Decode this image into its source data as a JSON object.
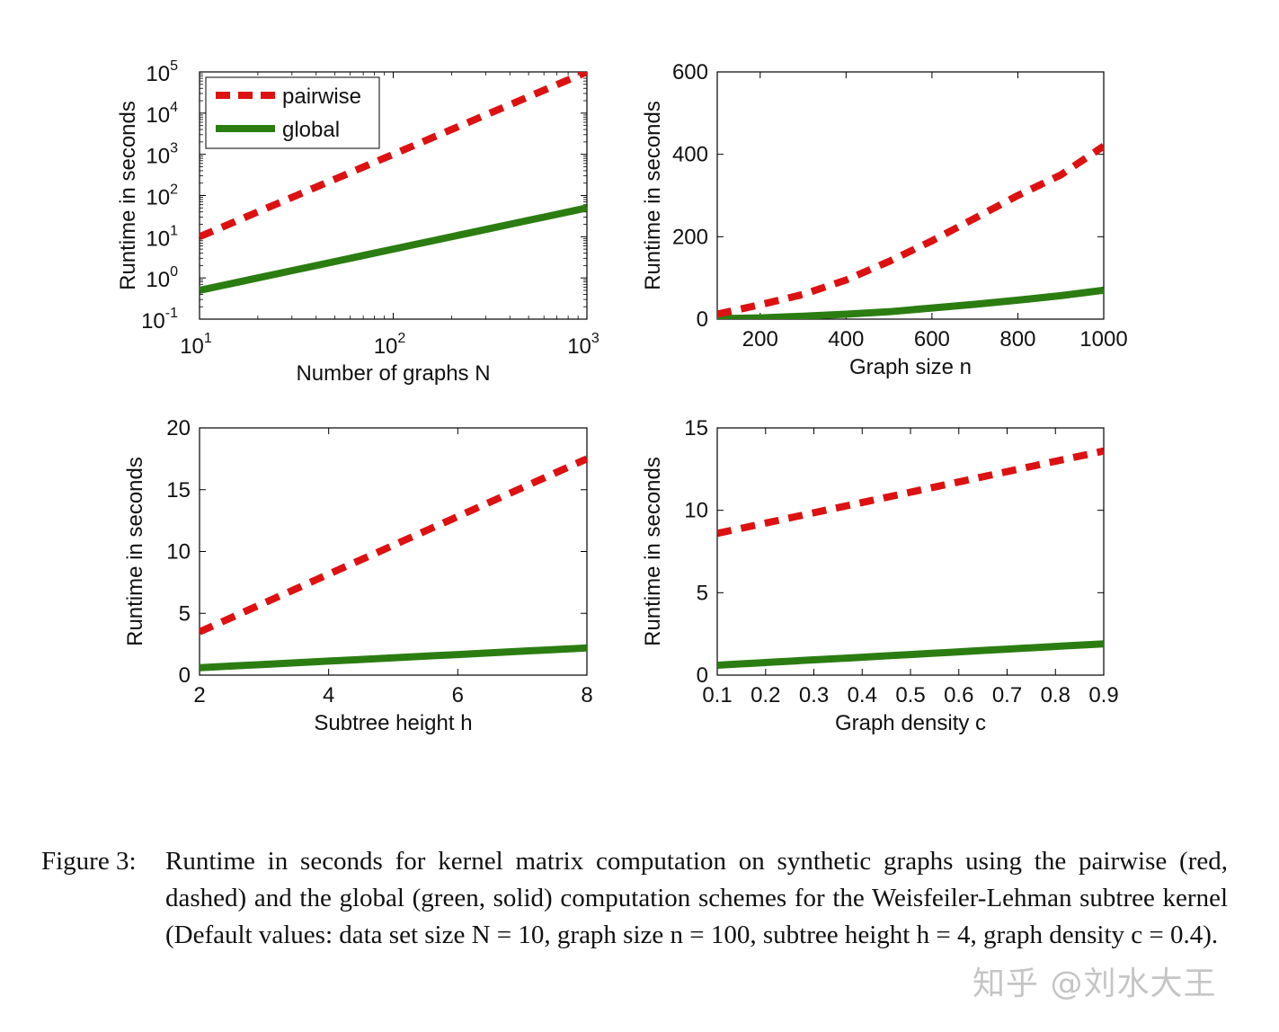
{
  "legend": {
    "pairwise": "pairwise",
    "global": "global",
    "placement": "top-left of first panel"
  },
  "colors": {
    "pairwise": "#dd1111",
    "global": "#2b7d12"
  },
  "chart_data": [
    {
      "type": "line",
      "xlabel": "Number of graphs N",
      "ylabel": "Runtime in seconds",
      "xscale": "log",
      "yscale": "log",
      "xlim": [
        10,
        1000
      ],
      "ylim": [
        0.1,
        100000
      ],
      "xticks": [
        10,
        100,
        1000
      ],
      "yticks": [
        0.1,
        1,
        10,
        100,
        1000,
        10000,
        100000
      ],
      "series": [
        {
          "name": "pairwise",
          "style": "dashed",
          "x": [
            10,
            1000
          ],
          "y": [
            10,
            100000
          ]
        },
        {
          "name": "global",
          "style": "solid",
          "x": [
            10,
            1000
          ],
          "y": [
            0.5,
            50
          ]
        }
      ]
    },
    {
      "type": "line",
      "xlabel": "Graph size n",
      "ylabel": "Runtime in seconds",
      "xlim": [
        100,
        1000
      ],
      "ylim": [
        0,
        600
      ],
      "xticks": [
        200,
        400,
        600,
        800,
        1000
      ],
      "yticks": [
        0,
        200,
        400,
        600
      ],
      "series": [
        {
          "name": "pairwise",
          "style": "dashed",
          "x": [
            100,
            200,
            300,
            400,
            500,
            600,
            700,
            800,
            900,
            1000
          ],
          "y": [
            12,
            35,
            60,
            95,
            140,
            190,
            245,
            300,
            350,
            420
          ]
        },
        {
          "name": "global",
          "style": "solid",
          "x": [
            100,
            200,
            300,
            400,
            500,
            600,
            700,
            800,
            900,
            1000
          ],
          "y": [
            1,
            3,
            7,
            12,
            18,
            27,
            36,
            46,
            57,
            70
          ]
        }
      ]
    },
    {
      "type": "line",
      "xlabel": "Subtree height h",
      "ylabel": "Runtime in seconds",
      "xlim": [
        2,
        8
      ],
      "ylim": [
        0,
        20
      ],
      "xticks": [
        2,
        4,
        6,
        8
      ],
      "yticks": [
        0,
        5,
        10,
        15,
        20
      ],
      "series": [
        {
          "name": "pairwise",
          "style": "dashed",
          "x": [
            2,
            8
          ],
          "y": [
            3.5,
            17.5
          ]
        },
        {
          "name": "global",
          "style": "solid",
          "x": [
            2,
            8
          ],
          "y": [
            0.6,
            2.2
          ]
        }
      ]
    },
    {
      "type": "line",
      "xlabel": "Graph density c",
      "ylabel": "Runtime in seconds",
      "xlim": [
        0.1,
        0.9
      ],
      "ylim": [
        0,
        15
      ],
      "xticks": [
        0.1,
        0.2,
        0.3,
        0.4,
        0.5,
        0.6,
        0.7,
        0.8,
        0.9
      ],
      "yticks": [
        0,
        5,
        10,
        15
      ],
      "series": [
        {
          "name": "pairwise",
          "style": "dashed",
          "x": [
            0.1,
            0.9
          ],
          "y": [
            8.6,
            13.6
          ]
        },
        {
          "name": "global",
          "style": "solid",
          "x": [
            0.1,
            0.9
          ],
          "y": [
            0.6,
            1.9
          ]
        }
      ]
    }
  ],
  "caption": {
    "label": "Figure 3:",
    "text": "Runtime in seconds for kernel matrix computation on synthetic graphs using the pairwise (red, dashed) and the global (green, solid) computation schemes for the Weisfeiler-Lehman subtree kernel (Default values: data set size N = 10, graph size n = 100, subtree height h = 4, graph density c = 0.4)."
  },
  "watermark": "知乎 @刘水大王"
}
